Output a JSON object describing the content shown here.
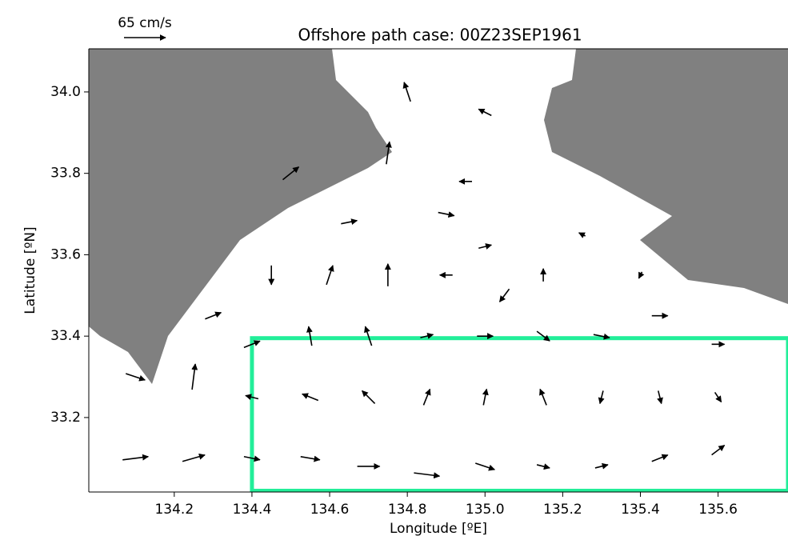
{
  "chart_data": {
    "type": "quiver",
    "title": "Offshore path case:  00Z23SEP1961",
    "xlabel": "Longitude  [ºE]",
    "ylabel": "Latitude  [ºN]",
    "xlim": [
      133.98,
      135.78
    ],
    "ylim": [
      33.017,
      34.106
    ],
    "xticks": [
      134.2,
      134.4,
      134.6,
      134.8,
      {
        "value": 135,
        "label": "135.0"
      },
      135.2,
      135.4,
      135.6
    ],
    "yticks": [
      33.2,
      33.4,
      33.6,
      33.8,
      {
        "value": 34,
        "label": "34.0"
      }
    ],
    "quiver_key": {
      "value": 65,
      "label": "65 cm/s"
    },
    "color": "#000000",
    "land_color": "#808080",
    "box": {
      "xlim": [
        134.4,
        135.78
      ],
      "ylim": [
        33.02,
        33.395
      ],
      "color": "#22ee99"
    },
    "vectors": {
      "lon": [
        134.1,
        134.25,
        134.25,
        134.1,
        134.4,
        134.55,
        134.7,
        134.85,
        135.0,
        135.15,
        135.3,
        135.45,
        135.6,
        134.4,
        134.55,
        134.7,
        134.85,
        135.0,
        135.15,
        135.3,
        135.45,
        135.6,
        134.4,
        134.55,
        134.7,
        134.85,
        135.0,
        135.15,
        135.3,
        135.45,
        135.6,
        134.45,
        134.6,
        134.75,
        134.9,
        135.05,
        135.15,
        135.0,
        134.65,
        134.9,
        134.5,
        134.75,
        134.8,
        135.0,
        134.95,
        135.25,
        134.3,
        135.4
      ],
      "lat": [
        33.1,
        33.1,
        33.3,
        33.3,
        33.1,
        33.1,
        33.08,
        33.06,
        33.08,
        33.08,
        33.08,
        33.1,
        33.12,
        33.25,
        33.25,
        33.25,
        33.25,
        33.25,
        33.25,
        33.25,
        33.25,
        33.25,
        33.38,
        33.4,
        33.4,
        33.4,
        33.4,
        33.4,
        33.4,
        33.45,
        33.38,
        33.55,
        33.55,
        33.55,
        33.55,
        33.5,
        33.55,
        33.62,
        33.68,
        33.7,
        33.8,
        33.85,
        34.0,
        33.95,
        33.78,
        33.65,
        33.45,
        33.55
      ],
      "u": [
        40,
        35,
        5,
        30,
        25,
        30,
        35,
        40,
        30,
        20,
        20,
        25,
        20,
        -20,
        -25,
        -20,
        10,
        5,
        -10,
        -5,
        5,
        10,
        25,
        -5,
        -10,
        20,
        25,
        20,
        25,
        25,
        20,
        0,
        10,
        0,
        -20,
        -15,
        0,
        20,
        25,
        25,
        25,
        5,
        -10,
        -20,
        -20,
        -10,
        25,
        -5
      ],
      "v": [
        5,
        10,
        40,
        -10,
        -5,
        -5,
        0,
        -5,
        -10,
        -5,
        5,
        10,
        15,
        5,
        10,
        20,
        25,
        25,
        25,
        -20,
        -20,
        -15,
        10,
        30,
        30,
        5,
        0,
        -15,
        -5,
        0,
        0,
        -30,
        30,
        35,
        0,
        -20,
        20,
        5,
        5,
        -5,
        20,
        35,
        30,
        10,
        0,
        5,
        10,
        -10
      ]
    }
  }
}
